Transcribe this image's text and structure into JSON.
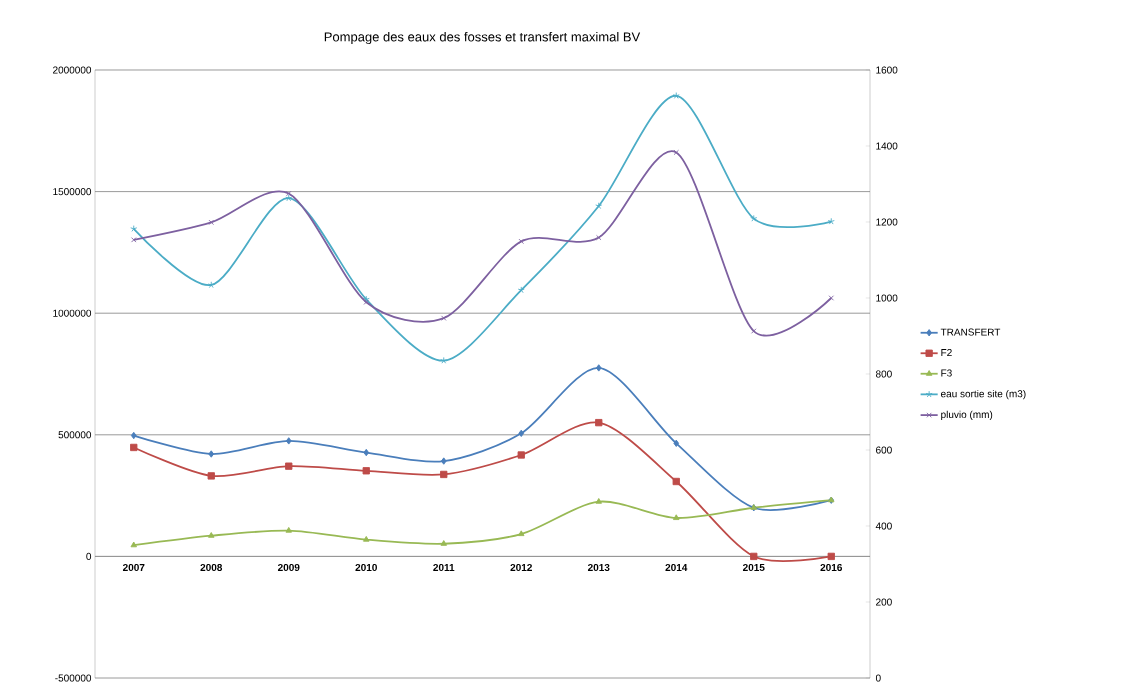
{
  "chart_data": {
    "type": "line",
    "title": "Pompage des eaux des fosses et transfert maximal BV",
    "categories": [
      "2007",
      "2008",
      "2009",
      "2010",
      "2011",
      "2012",
      "2013",
      "2014",
      "2015",
      "2016"
    ],
    "series": [
      {
        "name": "TRANSFERT",
        "color": "#4a7ebb",
        "marker": "diamond",
        "values": [
          497000,
          421000,
          475000,
          427000,
          392000,
          506000,
          775000,
          465000,
          200000,
          231000
        ]
      },
      {
        "name": "F2",
        "color": "#be4b48",
        "marker": "square",
        "values": [
          448000,
          331000,
          371000,
          352000,
          337000,
          417000,
          550000,
          308000,
          0,
          0
        ]
      },
      {
        "name": "F3",
        "color": "#98b954",
        "marker": "triangle",
        "values": [
          46000,
          85000,
          106000,
          69000,
          52000,
          92000,
          225000,
          158000,
          200000,
          231000
        ]
      },
      {
        "name": "eau sortie site (m3)",
        "color": "#4bacc6",
        "marker": "cross",
        "values": [
          1347000,
          1116000,
          1473000,
          1057000,
          805000,
          1095000,
          1441000,
          1894000,
          1389000,
          1377000
        ]
      },
      {
        "name": "pluvio (mm)",
        "color": "#7d60a0",
        "marker": "cross",
        "axis": "y2",
        "values": [
          1153,
          1199,
          1275,
          989,
          947,
          1149,
          1159,
          1383,
          913,
          1000
        ]
      }
    ],
    "ylim": [
      -500000,
      2000000
    ],
    "yticks": [
      -500000,
      0,
      500000,
      1000000,
      1500000,
      2000000
    ],
    "y2lim": [
      0,
      1600
    ],
    "y2ticks": [
      0,
      200,
      400,
      600,
      800,
      1000,
      1200,
      1400,
      1600
    ],
    "grid": "y",
    "legend": "right"
  }
}
